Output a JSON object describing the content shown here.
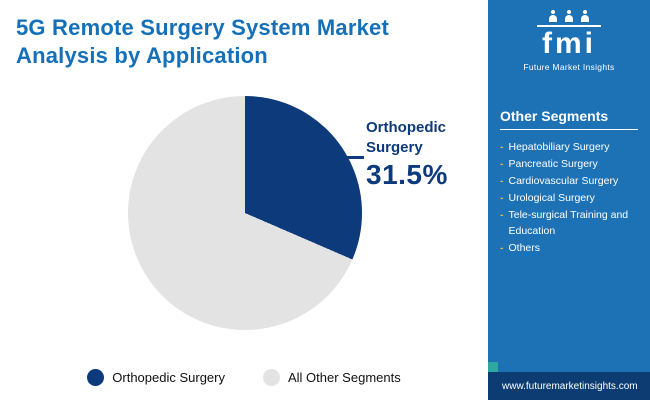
{
  "header": {
    "title_line1": "5G Remote Surgery System Market",
    "title_line2": "Analysis by Application"
  },
  "logo": {
    "text": "fmi",
    "tagline": "Future Market Insights"
  },
  "sidebar": {
    "heading": "Other Segments",
    "items": [
      "Hepatobiliary Surgery",
      "Pancreatic Surgery",
      "Cardiovascular Surgery",
      "Urological Surgery",
      "Tele-surgical Training and Education",
      "Others"
    ],
    "footer_url": "www.futuremarketinsights.com"
  },
  "chart_data": {
    "type": "pie",
    "title": "5G Remote Surgery System Market Analysis by Application",
    "slices": [
      {
        "label": "Orthopedic Surgery",
        "value": 31.5,
        "color": "#0d3a7a"
      },
      {
        "label": "All Other Segments",
        "value": 68.5,
        "color": "#e3e3e3"
      }
    ],
    "annotation": {
      "label": "Orthopedic Surgery",
      "value_text": "31.5%"
    },
    "legend_position": "bottom"
  },
  "legend": [
    {
      "label": "Orthopedic Surgery",
      "color": "#0d3a7a"
    },
    {
      "label": "All Other Segments",
      "color": "#e3e3e3"
    }
  ],
  "colors": {
    "title_blue": "#1470b8",
    "sidebar_blue": "#1d72b6",
    "footer_navy": "#0c3c72",
    "teal_accent": "#2fa8a2",
    "bullet_yellow": "#f2b12f"
  }
}
